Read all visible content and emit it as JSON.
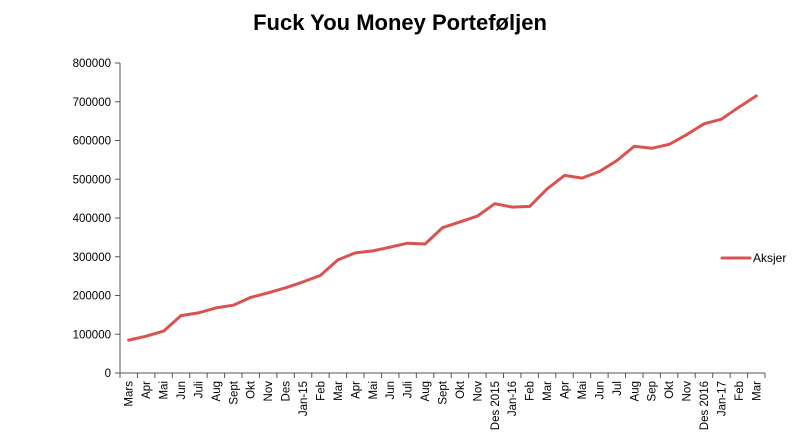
{
  "chart_data": {
    "type": "line",
    "title": "Fuck You Money Porteføljen",
    "xlabel": "",
    "ylabel": "",
    "ylim": [
      0,
      800000
    ],
    "yticks": [
      0,
      100000,
      200000,
      300000,
      400000,
      500000,
      600000,
      700000,
      800000
    ],
    "grid": false,
    "legend_position": "right",
    "categories": [
      "Mars",
      "Apr",
      "Mai",
      "Jun",
      "Juli",
      "Aug",
      "Sept",
      "Okt",
      "Nov",
      "Des",
      "Jan-15",
      "Feb",
      "Mar",
      "Apr",
      "Mai",
      "Jun",
      "Juli",
      "Aug",
      "Sept",
      "Okt",
      "Nov",
      "Des 2015",
      "Jan-16",
      "Feb",
      "Mar",
      "Apr",
      "Mai",
      "Jun",
      "Jul",
      "Aug",
      "Sep",
      "Okt",
      "Nov",
      "Des 2016",
      "Jan-17",
      "Feb",
      "Mar"
    ],
    "series": [
      {
        "name": "Aksjer",
        "color": "#d9534f",
        "values": [
          85000,
          95000,
          108000,
          148000,
          155000,
          168000,
          175000,
          195000,
          207000,
          220000,
          235000,
          252000,
          292000,
          310000,
          315000,
          325000,
          335000,
          333000,
          375000,
          390000,
          405000,
          437000,
          428000,
          430000,
          475000,
          510000,
          503000,
          520000,
          548000,
          585000,
          580000,
          590000,
          615000,
          643000,
          655000,
          686000,
          715000
        ]
      }
    ]
  }
}
